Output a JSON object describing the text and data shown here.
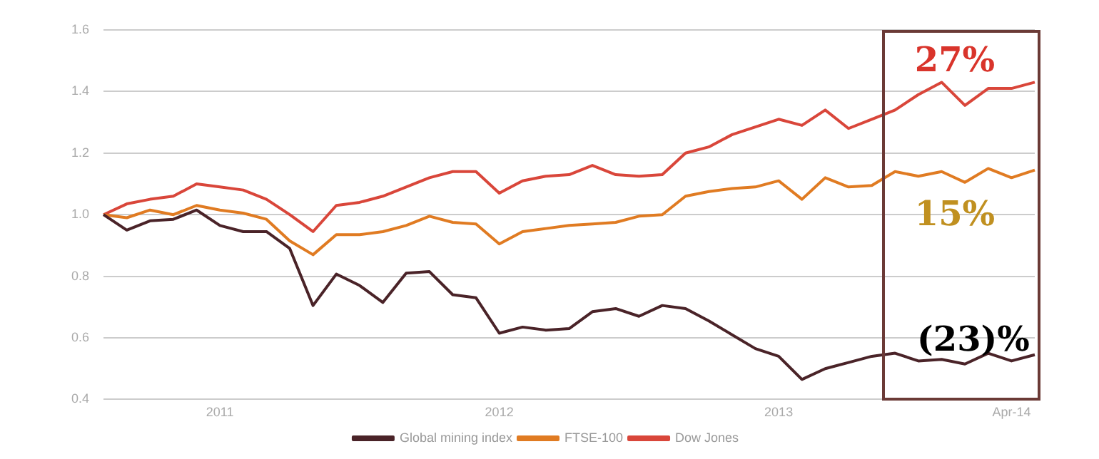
{
  "chart_data": {
    "type": "line",
    "categories": [
      null,
      null,
      null,
      null,
      null,
      "2011",
      null,
      null,
      null,
      null,
      null,
      null,
      null,
      null,
      null,
      null,
      null,
      "2012",
      null,
      null,
      null,
      null,
      null,
      null,
      null,
      null,
      null,
      null,
      null,
      "2013",
      null,
      null,
      null,
      null,
      null,
      null,
      null,
      null,
      null,
      "Apr-14",
      null
    ],
    "series": [
      {
        "name": "Global mining index",
        "color": "#4a2328",
        "values": [
          1.0,
          0.95,
          0.98,
          0.985,
          1.015,
          0.965,
          0.945,
          0.945,
          0.89,
          0.705,
          0.807,
          0.77,
          0.715,
          0.81,
          0.815,
          0.74,
          0.73,
          0.615,
          0.635,
          0.625,
          0.63,
          0.685,
          0.695,
          0.67,
          0.705,
          0.695,
          0.655,
          0.61,
          0.565,
          0.54,
          0.465,
          0.5,
          0.52,
          0.54,
          0.55,
          0.525,
          0.53,
          0.515,
          0.55,
          0.525,
          0.545
        ]
      },
      {
        "name": "FTSE-100",
        "color": "#e07b22",
        "values": [
          1.0,
          0.99,
          1.015,
          1.0,
          1.03,
          1.015,
          1.005,
          0.985,
          0.915,
          0.87,
          0.935,
          0.935,
          0.945,
          0.965,
          0.995,
          0.975,
          0.97,
          0.905,
          0.945,
          0.955,
          0.965,
          0.97,
          0.975,
          0.995,
          1.0,
          1.06,
          1.075,
          1.085,
          1.09,
          1.11,
          1.05,
          1.12,
          1.09,
          1.095,
          1.14,
          1.125,
          1.14,
          1.105,
          1.15,
          1.12,
          1.145
        ]
      },
      {
        "name": "Dow Jones",
        "color": "#d9463a",
        "values": [
          1.0,
          1.035,
          1.05,
          1.06,
          1.1,
          1.09,
          1.08,
          1.05,
          1.0,
          0.945,
          1.03,
          1.04,
          1.06,
          1.09,
          1.12,
          1.14,
          1.14,
          1.07,
          1.11,
          1.125,
          1.13,
          1.16,
          1.13,
          1.125,
          1.13,
          1.2,
          1.22,
          1.26,
          1.285,
          1.31,
          1.29,
          1.34,
          1.28,
          1.31,
          1.34,
          1.39,
          1.43,
          1.355,
          1.41,
          1.41,
          1.43
        ]
      }
    ],
    "ylim": [
      0.4,
      1.6
    ],
    "yticks": [
      0.4,
      0.6,
      0.8,
      {
        "value": 1.0,
        "label": "1.0"
      },
      1.2,
      1.4,
      1.6
    ],
    "grid": "y",
    "legend": "bottom",
    "marker": "none",
    "line_style": "solid",
    "annotations": [
      "27%",
      "15%",
      "(23)%"
    ]
  }
}
